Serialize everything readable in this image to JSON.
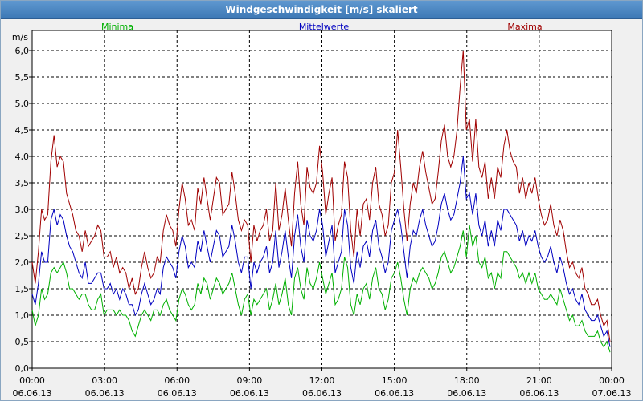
{
  "window": {
    "title": "Windgeschwindigkeit [m/s] skaliert"
  },
  "chart_data": {
    "type": "line",
    "title": "Windgeschwindigkeit [m/s] skaliert",
    "ylabel": "m/s",
    "ylim": [
      0,
      6.0
    ],
    "yticks": [
      "0,0",
      "0,5",
      "1,0",
      "1,5",
      "2,0",
      "2,5",
      "3,0",
      "3,5",
      "4,0",
      "4,5",
      "5,0",
      "5,5",
      "6,0"
    ],
    "xlim": [
      0,
      24
    ],
    "xticks": [
      {
        "time": "00:00",
        "date": "06.06.13"
      },
      {
        "time": "03:00",
        "date": "06.06.13"
      },
      {
        "time": "06:00",
        "date": "06.06.13"
      },
      {
        "time": "09:00",
        "date": "06.06.13"
      },
      {
        "time": "12:00",
        "date": "06.06.13"
      },
      {
        "time": "15:00",
        "date": "06.06.13"
      },
      {
        "time": "18:00",
        "date": "06.06.13"
      },
      {
        "time": "21:00",
        "date": "06.06.13"
      },
      {
        "time": "00:00",
        "date": "07.06.13"
      }
    ],
    "grid": true,
    "legend_placement": "top",
    "series": [
      {
        "name": "Minima",
        "color": "#00b000",
        "values": [
          1.1,
          0.8,
          1.0,
          1.5,
          1.3,
          1.4,
          1.8,
          1.9,
          1.8,
          1.9,
          2.0,
          1.8,
          1.5,
          1.5,
          1.4,
          1.3,
          1.4,
          1.4,
          1.2,
          1.1,
          1.1,
          1.3,
          1.4,
          1.0,
          1.1,
          1.1,
          1.1,
          1.0,
          1.1,
          1.0,
          1.0,
          0.9,
          0.7,
          0.6,
          0.8,
          1.0,
          1.1,
          1.0,
          0.9,
          1.1,
          1.1,
          1.0,
          1.2,
          1.3,
          1.1,
          1.0,
          0.9,
          1.3,
          1.5,
          1.4,
          1.2,
          1.1,
          1.2,
          1.6,
          1.4,
          1.7,
          1.6,
          1.3,
          1.5,
          1.7,
          1.6,
          1.4,
          1.5,
          1.6,
          1.8,
          1.5,
          1.2,
          1.0,
          1.3,
          1.4,
          1.0,
          1.3,
          1.2,
          1.3,
          1.4,
          1.5,
          1.1,
          1.3,
          1.6,
          1.2,
          1.4,
          1.7,
          1.2,
          1.0,
          1.7,
          1.9,
          1.5,
          1.3,
          1.9,
          1.6,
          1.5,
          1.7,
          2.0,
          1.7,
          1.4,
          1.6,
          1.8,
          1.2,
          1.3,
          1.5,
          2.1,
          1.9,
          1.2,
          1.0,
          1.4,
          1.2,
          1.5,
          1.6,
          1.3,
          1.7,
          1.9,
          1.5,
          1.4,
          1.1,
          1.3,
          1.7,
          1.8,
          2.0,
          1.7,
          1.3,
          1.0,
          1.5,
          1.7,
          1.6,
          1.8,
          1.9,
          1.8,
          1.7,
          1.5,
          1.6,
          1.8,
          2.1,
          2.2,
          2.0,
          1.8,
          1.9,
          2.1,
          2.3,
          2.6,
          2.1,
          2.7,
          2.3,
          2.5,
          2.0,
          1.9,
          2.1,
          1.7,
          1.8,
          1.5,
          1.8,
          1.7,
          2.2,
          2.2,
          2.1,
          2.0,
          1.9,
          1.7,
          1.8,
          1.6,
          1.8,
          1.6,
          1.8,
          1.5,
          1.4,
          1.3,
          1.3,
          1.4,
          1.3,
          1.2,
          1.5,
          1.3,
          1.1,
          0.9,
          1.0,
          0.8,
          0.8,
          0.9,
          0.7,
          0.6,
          0.6,
          0.6,
          0.7,
          0.5,
          0.4,
          0.5,
          0.3
        ]
      },
      {
        "name": "Mittelwerte",
        "color": "#0000c0",
        "values": [
          1.4,
          1.2,
          1.6,
          2.2,
          2.0,
          2.0,
          2.8,
          3.0,
          2.7,
          2.9,
          2.8,
          2.5,
          2.3,
          2.2,
          2.0,
          1.8,
          1.7,
          2.0,
          1.6,
          1.6,
          1.7,
          1.8,
          1.8,
          1.5,
          1.5,
          1.6,
          1.4,
          1.5,
          1.3,
          1.5,
          1.4,
          1.2,
          1.2,
          1.0,
          1.1,
          1.4,
          1.6,
          1.4,
          1.2,
          1.3,
          1.5,
          1.4,
          1.9,
          2.1,
          2.0,
          1.9,
          1.7,
          2.2,
          2.5,
          2.3,
          1.9,
          2.0,
          1.9,
          2.4,
          2.2,
          2.6,
          2.3,
          2.0,
          2.3,
          2.6,
          2.5,
          2.1,
          2.2,
          2.3,
          2.7,
          2.4,
          2.0,
          1.8,
          2.1,
          2.1,
          1.5,
          2.0,
          1.8,
          2.0,
          2.1,
          2.3,
          1.8,
          2.0,
          2.6,
          1.9,
          2.2,
          2.6,
          2.1,
          1.7,
          2.5,
          2.9,
          2.3,
          2.0,
          2.8,
          2.5,
          2.4,
          2.6,
          3.0,
          2.7,
          2.1,
          2.4,
          2.7,
          1.8,
          2.0,
          2.2,
          3.0,
          2.7,
          1.9,
          1.6,
          2.2,
          1.9,
          2.3,
          2.4,
          2.1,
          2.6,
          2.8,
          2.3,
          2.1,
          1.8,
          2.0,
          2.6,
          2.8,
          3.0,
          2.7,
          2.2,
          1.7,
          2.3,
          2.6,
          2.5,
          2.8,
          3.0,
          2.7,
          2.5,
          2.3,
          2.4,
          2.7,
          3.1,
          3.3,
          3.0,
          2.8,
          2.9,
          3.2,
          3.5,
          4.0,
          3.2,
          3.3,
          2.9,
          3.3,
          2.7,
          2.5,
          2.8,
          2.3,
          2.6,
          2.3,
          2.8,
          2.6,
          3.0,
          3.0,
          2.9,
          2.8,
          2.7,
          2.4,
          2.6,
          2.3,
          2.5,
          2.4,
          2.6,
          2.3,
          2.1,
          2.0,
          2.1,
          2.3,
          2.0,
          1.8,
          2.1,
          1.9,
          1.6,
          1.4,
          1.5,
          1.3,
          1.2,
          1.4,
          1.1,
          1.0,
          0.9,
          0.9,
          1.0,
          0.8,
          0.6,
          0.7,
          0.4
        ]
      },
      {
        "name": "Maxima",
        "color": "#a00000",
        "values": [
          2.0,
          1.6,
          2.2,
          3.0,
          2.8,
          2.9,
          3.9,
          4.4,
          3.8,
          4.0,
          3.9,
          3.3,
          3.1,
          2.9,
          2.6,
          2.5,
          2.2,
          2.6,
          2.3,
          2.4,
          2.5,
          2.7,
          2.6,
          2.1,
          2.1,
          2.2,
          1.9,
          2.1,
          1.8,
          1.9,
          1.8,
          1.5,
          1.7,
          1.4,
          1.5,
          1.9,
          2.2,
          1.9,
          1.7,
          1.8,
          2.1,
          2.0,
          2.6,
          2.9,
          2.7,
          2.6,
          2.3,
          3.0,
          3.5,
          3.2,
          2.7,
          2.8,
          2.6,
          3.4,
          3.1,
          3.6,
          3.2,
          2.8,
          3.2,
          3.6,
          3.5,
          2.9,
          3.0,
          3.1,
          3.7,
          3.3,
          2.8,
          2.6,
          2.8,
          2.7,
          2.0,
          2.7,
          2.4,
          2.6,
          2.7,
          3.0,
          2.4,
          2.6,
          3.5,
          2.6,
          2.9,
          3.4,
          2.8,
          2.3,
          3.3,
          3.9,
          3.1,
          2.7,
          3.8,
          3.4,
          3.3,
          3.5,
          4.2,
          3.7,
          2.9,
          3.3,
          3.6,
          2.4,
          2.7,
          2.9,
          3.9,
          3.6,
          2.6,
          2.1,
          3.0,
          2.5,
          3.1,
          3.2,
          2.8,
          3.5,
          3.8,
          3.1,
          2.9,
          2.5,
          2.7,
          3.5,
          3.7,
          4.5,
          3.8,
          3.0,
          2.4,
          3.1,
          3.5,
          3.3,
          3.8,
          4.1,
          3.7,
          3.4,
          3.1,
          3.2,
          3.7,
          4.3,
          4.6,
          4.0,
          3.8,
          4.0,
          4.5,
          5.3,
          6.0,
          4.5,
          4.7,
          3.9,
          4.7,
          3.8,
          3.6,
          3.9,
          3.2,
          3.6,
          3.2,
          3.8,
          3.6,
          4.2,
          4.5,
          4.1,
          3.9,
          3.8,
          3.3,
          3.6,
          3.2,
          3.5,
          3.3,
          3.6,
          3.2,
          2.9,
          2.7,
          2.8,
          3.1,
          2.7,
          2.5,
          2.8,
          2.6,
          2.2,
          1.9,
          2.0,
          1.8,
          1.7,
          1.9,
          1.5,
          1.4,
          1.2,
          1.2,
          1.3,
          1.0,
          0.8,
          0.9,
          0.5
        ]
      }
    ]
  }
}
